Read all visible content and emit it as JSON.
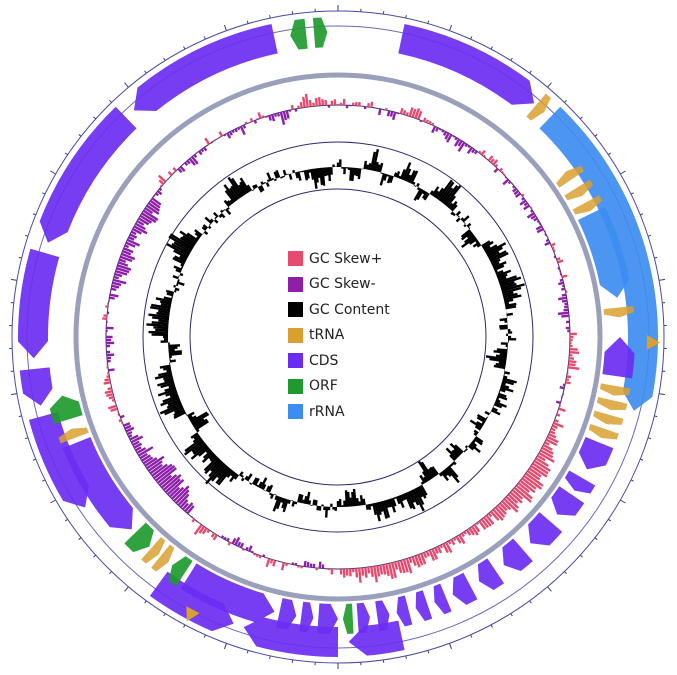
{
  "legend": [
    {
      "key": "gc_skew_plus",
      "label": "GC Skew+",
      "color": "#e64a6e"
    },
    {
      "key": "gc_skew_minus",
      "label": "GC Skew-",
      "color": "#8e1fa8"
    },
    {
      "key": "gc_content",
      "label": "GC Content",
      "color": "#000000"
    },
    {
      "key": "trna",
      "label": "tRNA",
      "color": "#d9a030"
    },
    {
      "key": "cds",
      "label": "CDS",
      "color": "#6a2cf2"
    },
    {
      "key": "orf",
      "label": "ORF",
      "color": "#1e9a2e"
    },
    {
      "key": "rrna",
      "label": "rRNA",
      "color": "#3d8cf0"
    }
  ],
  "features": {
    "outer_strand": [
      {
        "type": "cds",
        "start": 12,
        "end": 40,
        "dir": 1
      },
      {
        "type": "trna",
        "start": 40.5,
        "end": 42.5,
        "dir": 1
      },
      {
        "type": "rrna",
        "start": 44,
        "end": 104,
        "dir": 1
      },
      {
        "type": "cds",
        "start": 168,
        "end": 178,
        "dir": 1
      },
      {
        "type": "cds",
        "start": 180,
        "end": 198,
        "dir": 1
      },
      {
        "type": "cds",
        "start": 200,
        "end": 216,
        "dir": -1
      },
      {
        "type": "cds",
        "start": 236,
        "end": 255,
        "dir": -1
      },
      {
        "type": "cds",
        "start": 257,
        "end": 264,
        "dir": -1
      },
      {
        "type": "cds",
        "start": 266,
        "end": 286,
        "dir": -1
      },
      {
        "type": "cds",
        "start": 288,
        "end": 316,
        "dir": -1
      },
      {
        "type": "cds",
        "start": 318,
        "end": 348,
        "dir": -1
      },
      {
        "type": "orf",
        "start": 351,
        "end": 354,
        "dir": -1
      },
      {
        "type": "orf",
        "start": 355.5,
        "end": 358,
        "dir": 1
      }
    ],
    "inner_strand": [
      {
        "type": "trna",
        "start": 54,
        "end": 56,
        "dir": -1
      },
      {
        "type": "trna",
        "start": 58,
        "end": 60,
        "dir": 1
      },
      {
        "type": "trna",
        "start": 61.5,
        "end": 63.5,
        "dir": 1
      },
      {
        "type": "rrna",
        "start": 64,
        "end": 82,
        "dir": 1
      },
      {
        "type": "trna",
        "start": 84,
        "end": 86,
        "dir": 1
      },
      {
        "type": "cds",
        "start": 90,
        "end": 98,
        "dir": -1
      },
      {
        "type": "trna",
        "start": 100,
        "end": 102,
        "dir": 1
      },
      {
        "type": "trna",
        "start": 103,
        "end": 105,
        "dir": 1
      },
      {
        "type": "trna",
        "start": 106,
        "end": 108,
        "dir": 1
      },
      {
        "type": "trna",
        "start": 109,
        "end": 111,
        "dir": 1
      },
      {
        "type": "cds",
        "start": 112,
        "end": 118,
        "dir": 1
      },
      {
        "type": "cds",
        "start": 120,
        "end": 123,
        "dir": 1
      },
      {
        "type": "cds",
        "start": 124,
        "end": 129,
        "dir": 1
      },
      {
        "type": "cds",
        "start": 131,
        "end": 137,
        "dir": 1
      },
      {
        "type": "cds",
        "start": 139,
        "end": 144,
        "dir": 1
      },
      {
        "type": "cds",
        "start": 146,
        "end": 150,
        "dir": 1
      },
      {
        "type": "cds",
        "start": 152,
        "end": 156,
        "dir": 1
      },
      {
        "type": "cds",
        "start": 157.5,
        "end": 160,
        "dir": 1
      },
      {
        "type": "cds",
        "start": 161.5,
        "end": 164,
        "dir": 1
      },
      {
        "type": "cds",
        "start": 165.5,
        "end": 168,
        "dir": 1
      },
      {
        "type": "cds",
        "start": 169.5,
        "end": 172,
        "dir": -1
      },
      {
        "type": "cds",
        "start": 173.5,
        "end": 176,
        "dir": -1
      },
      {
        "type": "orf",
        "start": 177,
        "end": 179,
        "dir": 1
      },
      {
        "type": "cds",
        "start": 180,
        "end": 184,
        "dir": -1
      },
      {
        "type": "cds",
        "start": 185,
        "end": 187.5,
        "dir": -1
      },
      {
        "type": "cds",
        "start": 188.5,
        "end": 192,
        "dir": -1
      },
      {
        "type": "cds",
        "start": 193,
        "end": 212,
        "dir": -1
      },
      {
        "type": "orf",
        "start": 213,
        "end": 216,
        "dir": 1
      },
      {
        "type": "trna",
        "start": 217,
        "end": 219,
        "dir": -1
      },
      {
        "type": "trna",
        "start": 219.5,
        "end": 221.5,
        "dir": -1
      },
      {
        "type": "orf",
        "start": 222,
        "end": 226,
        "dir": -1
      },
      {
        "type": "cds",
        "start": 227,
        "end": 248,
        "dir": -1
      },
      {
        "type": "trna",
        "start": 249,
        "end": 251,
        "dir": 1
      },
      {
        "type": "orf",
        "start": 253,
        "end": 258,
        "dir": 1
      }
    ],
    "outside_markers": [
      {
        "type": "trna",
        "angle": 91
      },
      {
        "type": "trna",
        "angle": 208
      }
    ]
  },
  "gc_skew_profile": [
    [
      0,
      2
    ],
    [
      8,
      4
    ],
    [
      14,
      -10
    ],
    [
      18,
      18
    ],
    [
      26,
      -7
    ],
    [
      34,
      -12
    ],
    [
      40,
      9
    ],
    [
      48,
      -5
    ],
    [
      60,
      -8
    ],
    [
      70,
      4
    ],
    [
      84,
      -12
    ],
    [
      90,
      5
    ],
    [
      96,
      14
    ],
    [
      104,
      -4
    ],
    [
      112,
      10
    ],
    [
      118,
      20
    ],
    [
      122,
      30
    ],
    [
      128,
      35
    ],
    [
      134,
      26
    ],
    [
      140,
      18
    ],
    [
      148,
      10
    ],
    [
      158,
      16
    ],
    [
      166,
      24
    ],
    [
      176,
      16
    ],
    [
      186,
      -8
    ],
    [
      196,
      9
    ],
    [
      206,
      -10
    ],
    [
      216,
      14
    ],
    [
      224,
      -30
    ],
    [
      232,
      -40
    ],
    [
      238,
      -20
    ],
    [
      246,
      -12
    ],
    [
      252,
      8
    ],
    [
      258,
      10
    ],
    [
      264,
      -6
    ],
    [
      270,
      -9
    ],
    [
      276,
      5
    ],
    [
      282,
      -12
    ],
    [
      288,
      -22
    ],
    [
      296,
      -14
    ],
    [
      304,
      -28
    ],
    [
      312,
      10
    ],
    [
      320,
      -12
    ],
    [
      328,
      5
    ],
    [
      334,
      -10
    ],
    [
      340,
      6
    ],
    [
      346,
      -18
    ],
    [
      352,
      18
    ],
    [
      360,
      2
    ]
  ],
  "gc_content_profile": [
    [
      0,
      4
    ],
    [
      6,
      -10
    ],
    [
      12,
      14
    ],
    [
      16,
      -6
    ],
    [
      22,
      10
    ],
    [
      30,
      -4
    ],
    [
      38,
      16
    ],
    [
      44,
      6
    ],
    [
      52,
      -12
    ],
    [
      58,
      8
    ],
    [
      66,
      12
    ],
    [
      72,
      14
    ],
    [
      80,
      10
    ],
    [
      86,
      -8
    ],
    [
      90,
      4
    ],
    [
      98,
      -14
    ],
    [
      104,
      6
    ],
    [
      112,
      10
    ],
    [
      118,
      -8
    ],
    [
      126,
      4
    ],
    [
      134,
      -6
    ],
    [
      140,
      8
    ],
    [
      146,
      -12
    ],
    [
      152,
      10
    ],
    [
      160,
      12
    ],
    [
      168,
      8
    ],
    [
      176,
      -14
    ],
    [
      184,
      6
    ],
    [
      192,
      -8
    ],
    [
      200,
      12
    ],
    [
      208,
      -12
    ],
    [
      216,
      8
    ],
    [
      224,
      16
    ],
    [
      232,
      14
    ],
    [
      238,
      -12
    ],
    [
      246,
      10
    ],
    [
      252,
      18
    ],
    [
      258,
      6
    ],
    [
      266,
      -8
    ],
    [
      272,
      14
    ],
    [
      280,
      16
    ],
    [
      288,
      -6
    ],
    [
      294,
      8
    ],
    [
      300,
      18
    ],
    [
      306,
      10
    ],
    [
      314,
      -6
    ],
    [
      322,
      12
    ],
    [
      330,
      8
    ],
    [
      338,
      -4
    ],
    [
      344,
      6
    ],
    [
      352,
      -18
    ],
    [
      360,
      4
    ]
  ]
}
